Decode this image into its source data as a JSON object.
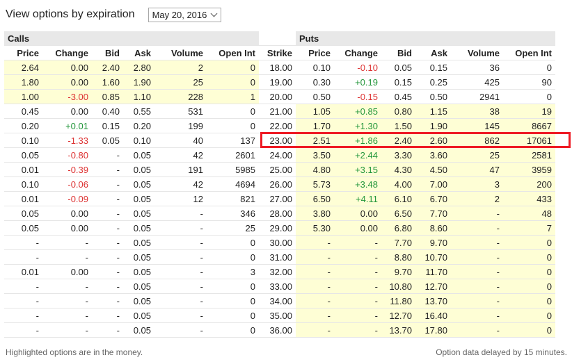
{
  "header": {
    "title": "View options by expiration",
    "expiration_selected": "May 20, 2016"
  },
  "table": {
    "group_calls": "Calls",
    "group_puts": "Puts",
    "columns": [
      "Price",
      "Change",
      "Bid",
      "Ask",
      "Volume",
      "Open Int",
      "Strike",
      "Price",
      "Change",
      "Bid",
      "Ask",
      "Volume",
      "Open Int"
    ],
    "rows": [
      {
        "c": [
          "2.64",
          "0.00",
          "2.40",
          "2.80",
          "2",
          "0"
        ],
        "s": "18.00",
        "p": [
          "0.10",
          "-0.10",
          "0.05",
          "0.15",
          "36",
          "0"
        ],
        "call_itm": true,
        "put_itm": false
      },
      {
        "c": [
          "1.80",
          "0.00",
          "1.60",
          "1.90",
          "25",
          "0"
        ],
        "s": "19.00",
        "p": [
          "0.30",
          "+0.19",
          "0.15",
          "0.25",
          "425",
          "90"
        ],
        "call_itm": true,
        "put_itm": false
      },
      {
        "c": [
          "1.00",
          "-3.00",
          "0.85",
          "1.10",
          "228",
          "1"
        ],
        "s": "20.00",
        "p": [
          "0.50",
          "-0.15",
          "0.45",
          "0.50",
          "2941",
          "0"
        ],
        "call_itm": true,
        "put_itm": false
      },
      {
        "c": [
          "0.45",
          "0.00",
          "0.40",
          "0.55",
          "531",
          "0"
        ],
        "s": "21.00",
        "p": [
          "1.05",
          "+0.85",
          "0.80",
          "1.15",
          "38",
          "19"
        ],
        "call_itm": false,
        "put_itm": true
      },
      {
        "c": [
          "0.20",
          "+0.01",
          "0.15",
          "0.20",
          "199",
          "0"
        ],
        "s": "22.00",
        "p": [
          "1.70",
          "+1.30",
          "1.50",
          "1.90",
          "145",
          "8667"
        ],
        "call_itm": false,
        "put_itm": true
      },
      {
        "c": [
          "0.10",
          "-1.33",
          "0.05",
          "0.10",
          "40",
          "137"
        ],
        "s": "23.00",
        "p": [
          "2.51",
          "+1.86",
          "2.40",
          "2.60",
          "862",
          "17061"
        ],
        "call_itm": false,
        "put_itm": true
      },
      {
        "c": [
          "0.05",
          "-0.80",
          "-",
          "0.05",
          "42",
          "2601"
        ],
        "s": "24.00",
        "p": [
          "3.50",
          "+2.44",
          "3.30",
          "3.60",
          "25",
          "2581"
        ],
        "call_itm": false,
        "put_itm": true
      },
      {
        "c": [
          "0.01",
          "-0.39",
          "-",
          "0.05",
          "191",
          "5985"
        ],
        "s": "25.00",
        "p": [
          "4.80",
          "+3.15",
          "4.30",
          "4.50",
          "47",
          "3959"
        ],
        "call_itm": false,
        "put_itm": true
      },
      {
        "c": [
          "0.10",
          "-0.06",
          "-",
          "0.05",
          "42",
          "4694"
        ],
        "s": "26.00",
        "p": [
          "5.73",
          "+3.48",
          "4.00",
          "7.00",
          "3",
          "200"
        ],
        "call_itm": false,
        "put_itm": true
      },
      {
        "c": [
          "0.01",
          "-0.09",
          "-",
          "0.05",
          "12",
          "821"
        ],
        "s": "27.00",
        "p": [
          "6.50",
          "+4.11",
          "6.10",
          "6.70",
          "2",
          "433"
        ],
        "call_itm": false,
        "put_itm": true
      },
      {
        "c": [
          "0.05",
          "0.00",
          "-",
          "0.05",
          "-",
          "346"
        ],
        "s": "28.00",
        "p": [
          "3.80",
          "0.00",
          "6.50",
          "7.70",
          "-",
          "48"
        ],
        "call_itm": false,
        "put_itm": true
      },
      {
        "c": [
          "0.05",
          "0.00",
          "-",
          "0.05",
          "-",
          "25"
        ],
        "s": "29.00",
        "p": [
          "5.30",
          "0.00",
          "6.80",
          "8.60",
          "-",
          "7"
        ],
        "call_itm": false,
        "put_itm": true
      },
      {
        "c": [
          "-",
          "-",
          "-",
          "0.05",
          "-",
          "0"
        ],
        "s": "30.00",
        "p": [
          "-",
          "-",
          "7.70",
          "9.70",
          "-",
          "0"
        ],
        "call_itm": false,
        "put_itm": true
      },
      {
        "c": [
          "-",
          "-",
          "-",
          "0.05",
          "-",
          "0"
        ],
        "s": "31.00",
        "p": [
          "-",
          "-",
          "8.80",
          "10.70",
          "-",
          "0"
        ],
        "call_itm": false,
        "put_itm": true
      },
      {
        "c": [
          "0.01",
          "0.00",
          "-",
          "0.05",
          "-",
          "3"
        ],
        "s": "32.00",
        "p": [
          "-",
          "-",
          "9.70",
          "11.70",
          "-",
          "0"
        ],
        "call_itm": false,
        "put_itm": true
      },
      {
        "c": [
          "-",
          "-",
          "-",
          "0.05",
          "-",
          "0"
        ],
        "s": "33.00",
        "p": [
          "-",
          "-",
          "10.80",
          "12.70",
          "-",
          "0"
        ],
        "call_itm": false,
        "put_itm": true
      },
      {
        "c": [
          "-",
          "-",
          "-",
          "0.05",
          "-",
          "0"
        ],
        "s": "34.00",
        "p": [
          "-",
          "-",
          "11.80",
          "13.70",
          "-",
          "0"
        ],
        "call_itm": false,
        "put_itm": true
      },
      {
        "c": [
          "-",
          "-",
          "-",
          "0.05",
          "-",
          "0"
        ],
        "s": "35.00",
        "p": [
          "-",
          "-",
          "12.70",
          "16.40",
          "-",
          "0"
        ],
        "call_itm": false,
        "put_itm": true
      },
      {
        "c": [
          "-",
          "-",
          "-",
          "0.05",
          "-",
          "0"
        ],
        "s": "36.00",
        "p": [
          "-",
          "-",
          "13.70",
          "17.80",
          "-",
          "0"
        ],
        "call_itm": false,
        "put_itm": true
      }
    ]
  },
  "footer": {
    "left": "Highlighted options are in the money.",
    "right": "Option data delayed by 15 minutes."
  },
  "colors": {
    "itm_background": "#fefed5",
    "positive_change": "#22963a",
    "negative_change": "#dd3333",
    "highlight_outline": "#ee1b24",
    "group_header_background": "#e8e8e8"
  }
}
